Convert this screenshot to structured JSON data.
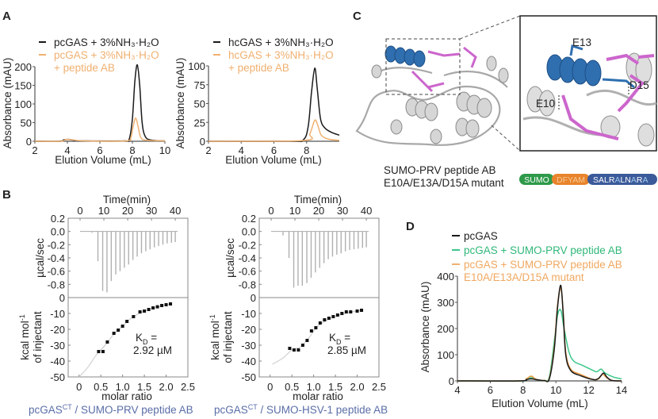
{
  "panels": {
    "a": "A",
    "b": "B",
    "c": "C",
    "d": "D"
  },
  "colors": {
    "black": "#1a1a1a",
    "orange_light": "#f0b070",
    "orange": "#e8963e",
    "green": "#3cc88a",
    "gray": "#b8b8b8",
    "caption": "#5a6ea8"
  },
  "chart_data": [
    {
      "id": "A-left",
      "type": "line",
      "xlabel": "Elution Volume (mL)",
      "ylabel": "Absorbance (mAU)",
      "xlim": [
        2,
        10
      ],
      "ylim": [
        0,
        200
      ],
      "xticks": [
        2,
        4,
        6,
        8,
        10
      ],
      "yticks": [
        0,
        50,
        100,
        150,
        200
      ],
      "legend": [
        "pcGAS + 3%NH₃·H₂O",
        "pcGAS + 3%NH₃·H₂O",
        "+ peptide AB"
      ],
      "series": [
        {
          "name": "pcGAS + 3%NH₃·H₂O",
          "color": "#1a1a1a",
          "points": [
            [
              2,
              0
            ],
            [
              3.5,
              0
            ],
            [
              3.8,
              4
            ],
            [
              4.1,
              5
            ],
            [
              4.5,
              2
            ],
            [
              5,
              1
            ],
            [
              7.5,
              1
            ],
            [
              7.8,
              5
            ],
            [
              8.0,
              60
            ],
            [
              8.15,
              160
            ],
            [
              8.3,
              205
            ],
            [
              8.45,
              150
            ],
            [
              8.6,
              50
            ],
            [
              8.8,
              12
            ],
            [
              9.2,
              3
            ],
            [
              10,
              1
            ]
          ]
        },
        {
          "name": "pcGAS + 3%NH₃·H₂O + peptide AB",
          "color": "#f0b070",
          "points": [
            [
              2,
              0
            ],
            [
              3.6,
              0
            ],
            [
              3.9,
              5
            ],
            [
              4.3,
              4
            ],
            [
              5,
              1
            ],
            [
              7.6,
              1
            ],
            [
              7.9,
              10
            ],
            [
              8.05,
              40
            ],
            [
              8.2,
              62
            ],
            [
              8.35,
              40
            ],
            [
              8.5,
              12
            ],
            [
              8.8,
              3
            ],
            [
              10,
              1
            ]
          ]
        }
      ]
    },
    {
      "id": "A-right",
      "type": "line",
      "xlabel": "Elution Volume (mL)",
      "ylabel": "Absorbance (mAU)",
      "xlim": [
        2,
        10
      ],
      "ylim": [
        0,
        100
      ],
      "xticks": [
        2,
        4,
        6,
        8
      ],
      "yticks": [
        0,
        25,
        50,
        75,
        100
      ],
      "legend": [
        "hcGAS + 3%NH₃·H₂O",
        "hcGAS + 3%NH₃·H₂O",
        "+ peptide AB"
      ],
      "series": [
        {
          "name": "hcGAS + 3%NH₃·H₂O",
          "color": "#1a1a1a",
          "points": [
            [
              2,
              0
            ],
            [
              7,
              0
            ],
            [
              7.8,
              2
            ],
            [
              8.1,
              20
            ],
            [
              8.3,
              65
            ],
            [
              8.5,
              97
            ],
            [
              8.65,
              70
            ],
            [
              8.85,
              30
            ],
            [
              9.1,
              18
            ],
            [
              9.5,
              12
            ],
            [
              10,
              8
            ]
          ]
        },
        {
          "name": "hcGAS + 3%NH₃·H₂O + peptide AB",
          "color": "#f0b070",
          "points": [
            [
              2,
              0
            ],
            [
              7.8,
              1
            ],
            [
              8.2,
              10
            ],
            [
              8.5,
              28
            ],
            [
              8.7,
              20
            ],
            [
              8.9,
              8
            ],
            [
              9.3,
              3
            ],
            [
              10,
              1
            ]
          ]
        }
      ]
    },
    {
      "id": "B-left",
      "type": "scatter",
      "top": {
        "xlabel": "Time(min)",
        "ylabel": "µcal/sec",
        "xlim": [
          -5,
          45.3
        ],
        "ylim": [
          -1.0,
          0.2
        ],
        "xticks": [
          0,
          10,
          20,
          30,
          40
        ],
        "yticks": [
          "0.2",
          "0.0",
          "-0.2",
          "-0.4",
          "-0.6",
          "-0.8"
        ],
        "injections": {
          "times": [
            5,
            7.5,
            9.5,
            11.3,
            13.1,
            15,
            16.8,
            18.6,
            20.4,
            22.2,
            24,
            25.8,
            27.6,
            29.4,
            31.2,
            33,
            34.8,
            36.6,
            38.4,
            40
          ],
          "depths": [
            -0.02,
            -0.45,
            -0.9,
            -0.92,
            -0.75,
            -0.65,
            -0.6,
            -0.55,
            -0.5,
            -0.43,
            -0.38,
            -0.33,
            -0.3,
            -0.27,
            -0.24,
            -0.22,
            -0.2,
            -0.18,
            -0.17,
            -0.16
          ]
        }
      },
      "bottom": {
        "xlabel": "molar ratio",
        "ylabel": [
          "kcal mol",
          "-1",
          "of injectant"
        ],
        "xlim": [
          -0.25,
          2.5
        ],
        "ylim": [
          -50,
          0
        ],
        "xticks": [
          "0",
          "0.5",
          "1.0",
          "1.5",
          "2.0",
          "2.5"
        ],
        "yticks": [
          "0",
          "-10",
          "-20",
          "-30",
          "-40",
          "-50"
        ],
        "points": [
          [
            0.45,
            -34
          ],
          [
            0.55,
            -34
          ],
          [
            0.65,
            -28
          ],
          [
            0.8,
            -22.5
          ],
          [
            0.9,
            -20.5
          ],
          [
            1.0,
            -18
          ],
          [
            1.1,
            -15
          ],
          [
            1.25,
            -12
          ],
          [
            1.4,
            -9
          ],
          [
            1.5,
            -8.5
          ],
          [
            1.6,
            -7.5
          ],
          [
            1.7,
            -6.5
          ],
          [
            1.8,
            -5.8
          ],
          [
            1.9,
            -5
          ],
          [
            2.0,
            -4.5
          ],
          [
            2.1,
            -4
          ]
        ],
        "fit": [
          [
            0,
            -50
          ],
          [
            0.2,
            -44
          ],
          [
            0.4,
            -36
          ],
          [
            0.6,
            -30
          ],
          [
            0.8,
            -23
          ],
          [
            1.0,
            -18
          ],
          [
            1.2,
            -13
          ],
          [
            1.5,
            -8.5
          ],
          [
            1.8,
            -6
          ],
          [
            2.1,
            -4
          ]
        ]
      },
      "kd": {
        "k": "K",
        "sub": "D",
        "eq": " =",
        "value": "2.92 µM"
      },
      "caption": {
        "main": "pcGAS",
        "sup": "CT",
        "rest": " / SUMO-PRV peptide AB"
      }
    },
    {
      "id": "B-right",
      "type": "scatter",
      "top": {
        "xlabel": "Time(min)",
        "ylabel": "µcal/sec",
        "xlim": [
          -5,
          45.3
        ],
        "ylim": [
          -1.0,
          0.2
        ],
        "xticks": [
          0,
          10,
          20,
          30,
          40
        ],
        "yticks": [
          "0.2",
          "0.0",
          "-0.2",
          "-0.4",
          "-0.6",
          "-0.8"
        ],
        "injections": {
          "times": [
            5,
            7.5,
            9.5,
            11.3,
            13.1,
            15,
            16.8,
            18.6,
            20.4,
            22.2,
            24,
            25.8,
            27.6,
            29.4,
            31.2,
            33,
            34.8,
            36.6,
            38.4,
            40
          ],
          "depths": [
            -0.06,
            -0.4,
            -0.85,
            -0.82,
            -0.82,
            -0.78,
            -0.7,
            -0.62,
            -0.55,
            -0.48,
            -0.42,
            -0.38,
            -0.35,
            -0.33,
            -0.3,
            -0.28,
            -0.27,
            -0.26,
            -0.25,
            -0.24
          ]
        }
      },
      "bottom": {
        "xlabel": "molar ratio",
        "ylabel": [
          "kcal mol",
          "-1",
          "of injectant"
        ],
        "xlim": [
          -0.25,
          2.5
        ],
        "ylim": [
          -50,
          0
        ],
        "xticks": [
          "0",
          "0.5",
          "1.0",
          "1.5",
          "2.0",
          "2.5"
        ],
        "yticks": [
          "0",
          "-10",
          "-20",
          "-30",
          "-40",
          "-50"
        ],
        "points": [
          [
            0.45,
            -32
          ],
          [
            0.55,
            -33
          ],
          [
            0.65,
            -33
          ],
          [
            0.75,
            -30
          ],
          [
            0.85,
            -27
          ],
          [
            0.95,
            -21
          ],
          [
            1.05,
            -19
          ],
          [
            1.15,
            -16
          ],
          [
            1.25,
            -14
          ],
          [
            1.35,
            -13
          ],
          [
            1.45,
            -12
          ],
          [
            1.55,
            -11
          ],
          [
            1.65,
            -10
          ],
          [
            1.75,
            -9
          ],
          [
            1.85,
            -9
          ],
          [
            2.0,
            -8.5
          ],
          [
            2.1,
            -8
          ]
        ],
        "fit": [
          [
            0.05,
            -42
          ],
          [
            0.3,
            -38
          ],
          [
            0.5,
            -33
          ],
          [
            0.7,
            -31
          ],
          [
            0.9,
            -25
          ],
          [
            1.1,
            -18
          ],
          [
            1.4,
            -13
          ],
          [
            1.8,
            -9.5
          ],
          [
            2.1,
            -8
          ]
        ]
      },
      "kd": {
        "k": "K",
        "sub": "D",
        "eq": " =",
        "value": "2.85 µM"
      },
      "caption": {
        "main": "pcGAS",
        "sup": "CT",
        "rest": " / SUMO-HSV-1 peptide AB"
      }
    },
    {
      "id": "D",
      "type": "line",
      "xlabel": "Elution Volume (mL)",
      "ylabel": "Absorbance (mAU)",
      "xlim": [
        4,
        14
      ],
      "ylim": [
        0,
        400
      ],
      "xticks": [
        4,
        6,
        8,
        10,
        12,
        14
      ],
      "yticks": [
        0,
        100,
        200,
        300,
        400
      ],
      "legend": [
        "pcGAS",
        "pcGAS + SUMO-PRV peptide AB",
        "pcGAS + SUMO-PRV peptide AB",
        "E10A/E13A/D15A mutant"
      ],
      "series": [
        {
          "name": "pcGAS + SUMO-PRV peptide AB",
          "color": "#3cc88a",
          "points": [
            [
              4,
              0
            ],
            [
              7.8,
              0
            ],
            [
              8.2,
              5
            ],
            [
              8.5,
              12
            ],
            [
              8.8,
              5
            ],
            [
              9.3,
              2
            ],
            [
              9.6,
              15
            ],
            [
              9.9,
              150
            ],
            [
              10.1,
              250
            ],
            [
              10.3,
              270
            ],
            [
              10.5,
              200
            ],
            [
              10.8,
              110
            ],
            [
              11.1,
              75
            ],
            [
              11.6,
              60
            ],
            [
              12.2,
              42
            ],
            [
              12.5,
              35
            ],
            [
              12.75,
              45
            ],
            [
              13,
              30
            ],
            [
              13.5,
              15
            ],
            [
              14,
              8
            ]
          ]
        },
        {
          "name": "pcGAS + SUMO-PRV peptide AB E10A/E13A/D15A mutant",
          "color": "#e8963e",
          "points": [
            [
              4,
              0
            ],
            [
              7.8,
              0
            ],
            [
              8.2,
              8
            ],
            [
              8.5,
              18
            ],
            [
              8.8,
              6
            ],
            [
              9.3,
              2
            ],
            [
              9.6,
              10
            ],
            [
              9.9,
              130
            ],
            [
              10.1,
              290
            ],
            [
              10.3,
              355
            ],
            [
              10.45,
              260
            ],
            [
              10.6,
              110
            ],
            [
              10.9,
              45
            ],
            [
              11.5,
              25
            ],
            [
              12.3,
              5
            ],
            [
              12.6,
              8
            ],
            [
              12.85,
              25
            ],
            [
              13.1,
              12
            ],
            [
              13.4,
              2
            ],
            [
              14,
              0
            ]
          ]
        },
        {
          "name": "pcGAS",
          "color": "#1a1a1a",
          "points": [
            [
              4,
              0
            ],
            [
              7.8,
              0
            ],
            [
              8.2,
              5
            ],
            [
              8.5,
              8
            ],
            [
              8.8,
              5
            ],
            [
              9.3,
              1
            ],
            [
              9.6,
              8
            ],
            [
              9.9,
              120
            ],
            [
              10.1,
              280
            ],
            [
              10.3,
              365
            ],
            [
              10.45,
              250
            ],
            [
              10.6,
              100
            ],
            [
              10.9,
              40
            ],
            [
              11.5,
              20
            ],
            [
              12.3,
              5
            ],
            [
              12.6,
              10
            ],
            [
              12.9,
              30
            ],
            [
              13.1,
              15
            ],
            [
              13.4,
              2
            ],
            [
              14,
              0
            ]
          ]
        }
      ]
    }
  ],
  "structure": {
    "residues": [
      "E13",
      "D15",
      "E10"
    ],
    "caption": [
      "SUMO-PRV peptide AB",
      "E10A/E13A/D15A mutant"
    ],
    "construct": [
      {
        "label": "SUMO",
        "color": "#2e9a4a"
      },
      {
        "label": "DFYAM",
        "color": "#e8842b"
      },
      {
        "label": "SALR",
        "color": "#3a5a9a"
      }
    ],
    "construct_tail": [
      {
        "text": "SALR",
        "color": "#ffffff"
      },
      {
        "text": "A",
        "color": "#9fc6ea"
      },
      {
        "text": "LN",
        "color": "#ffffff"
      },
      {
        "text": "A",
        "color": "#9fc6ea"
      },
      {
        "text": "R",
        "color": "#ffffff"
      },
      {
        "text": "A",
        "color": "#9fc6ea"
      }
    ]
  }
}
